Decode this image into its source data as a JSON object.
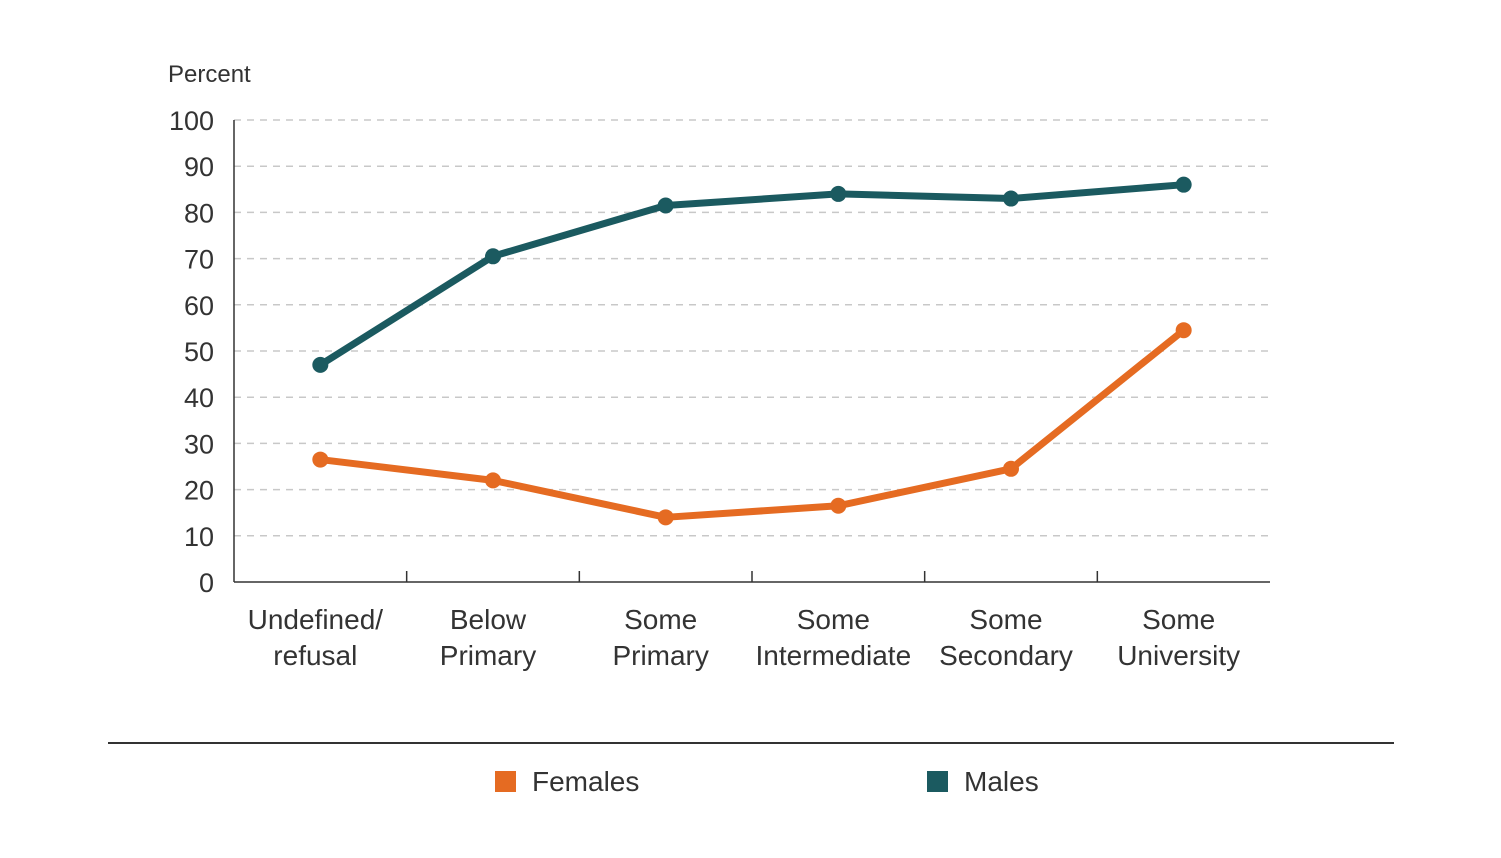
{
  "chart_data": {
    "type": "line",
    "ylabel": "Percent",
    "xlabel": "",
    "title": "",
    "ylim": [
      0,
      100
    ],
    "yticks": [
      0,
      10,
      20,
      30,
      40,
      50,
      60,
      70,
      80,
      90,
      100
    ],
    "categories": [
      [
        "Undefined/",
        "refusal"
      ],
      [
        "Below",
        "Primary"
      ],
      [
        "Some",
        "Primary"
      ],
      [
        "Some",
        "Intermediate"
      ],
      [
        "Some",
        "Secondary"
      ],
      [
        "Some",
        "University"
      ]
    ],
    "series": [
      {
        "name": "Females",
        "color": "#e56b22",
        "values": [
          26.5,
          22,
          14,
          16.5,
          24.5,
          54.5
        ]
      },
      {
        "name": "Males",
        "color": "#1b5a60",
        "values": [
          47,
          70.5,
          81.5,
          84,
          83,
          86
        ]
      }
    ],
    "grid": true,
    "legend": "bottom"
  }
}
